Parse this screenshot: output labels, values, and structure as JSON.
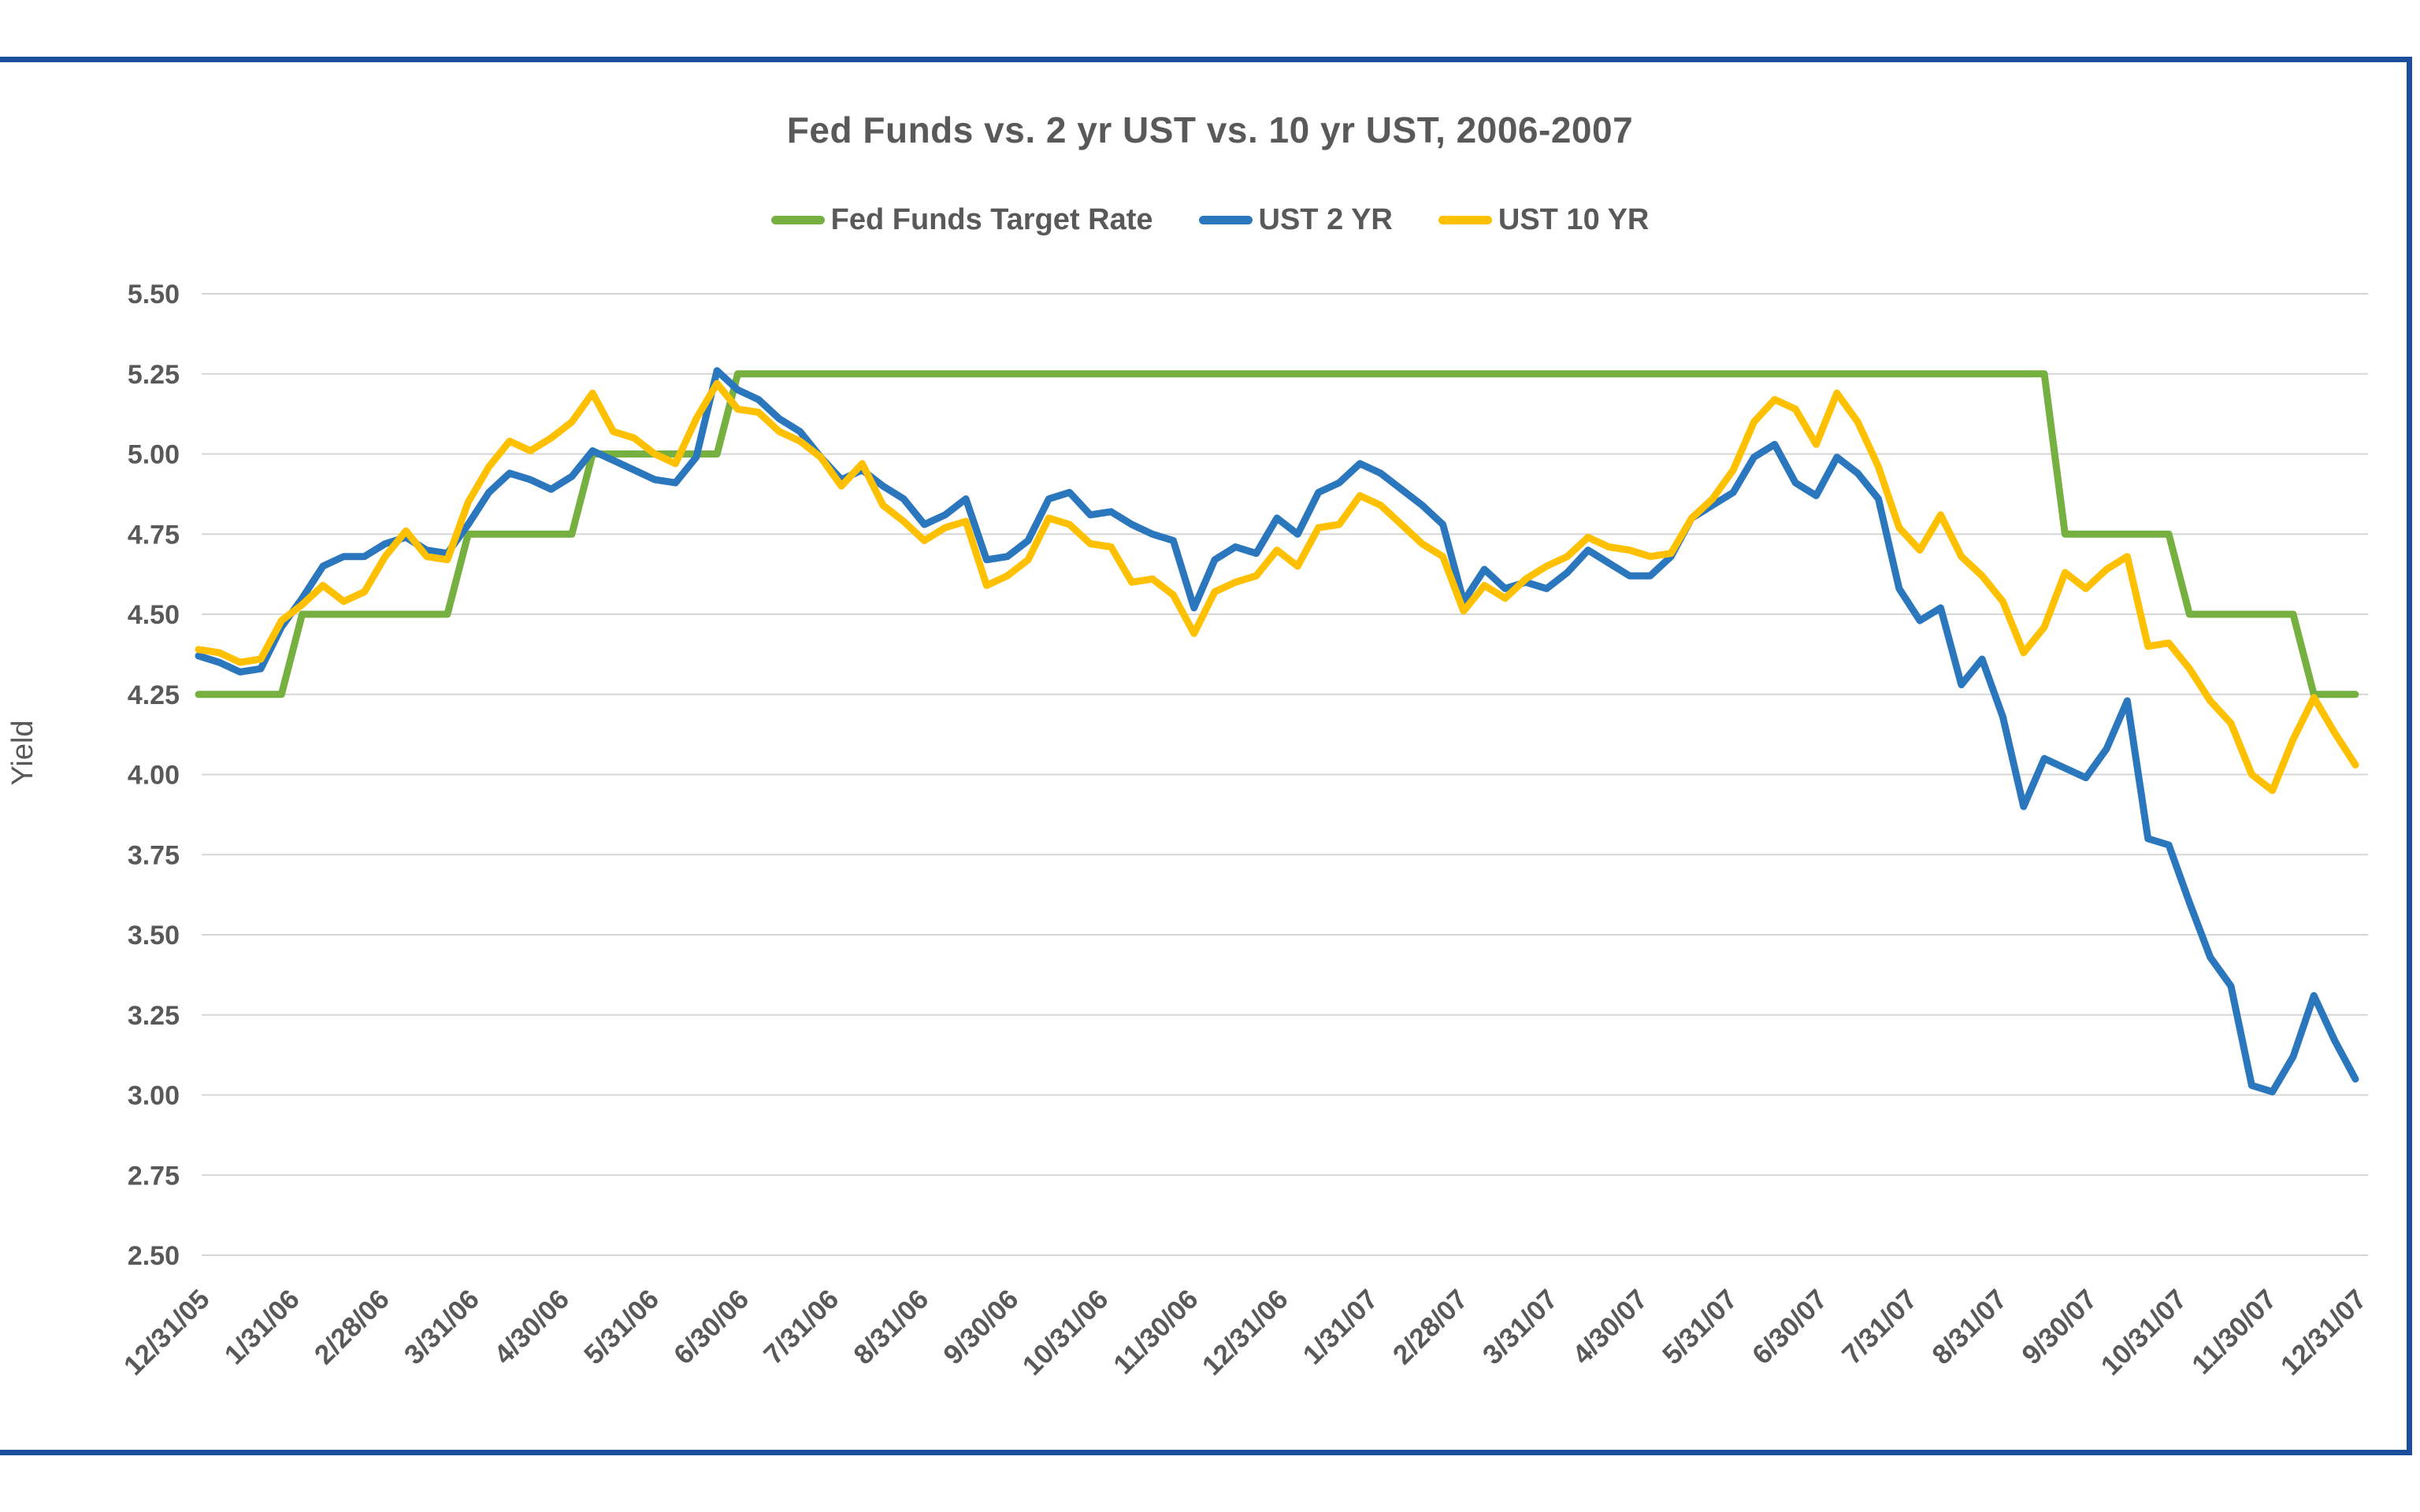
{
  "chart_data": {
    "type": "line",
    "title": "Fed Funds vs. 2 yr UST vs. 10 yr UST, 2006-2007",
    "xlabel": "",
    "ylabel": "Yield",
    "ylim": [
      2.5,
      5.5
    ],
    "ytick_step": 0.25,
    "y_tick_labels": [
      "5.50",
      "5.25",
      "5.00",
      "4.75",
      "4.50",
      "4.25",
      "4.00",
      "3.75",
      "3.50",
      "3.25",
      "3.00",
      "2.75",
      "2.50"
    ],
    "x_tick_labels": [
      "12/31/05",
      "1/31/06",
      "2/28/06",
      "3/31/06",
      "4/30/06",
      "5/31/06",
      "6/30/06",
      "7/31/06",
      "8/31/06",
      "9/30/06",
      "10/31/06",
      "11/30/06",
      "12/31/06",
      "1/31/07",
      "2/28/07",
      "3/31/07",
      "4/30/07",
      "5/31/07",
      "6/30/07",
      "7/31/07",
      "8/31/07",
      "9/30/07",
      "10/31/07",
      "11/30/07",
      "12/31/07"
    ],
    "x_sampling": "weekly",
    "x_start": "12/31/05",
    "x_end": "12/31/07",
    "n_points": 105,
    "grid": "horizontal-only",
    "legend_position": "top-center",
    "series": [
      {
        "name": "Fed Funds Target Rate",
        "color": "#76B041",
        "values": [
          4.25,
          4.25,
          4.25,
          4.25,
          4.25,
          4.5,
          4.5,
          4.5,
          4.5,
          4.5,
          4.5,
          4.5,
          4.5,
          4.75,
          4.75,
          4.75,
          4.75,
          4.75,
          4.75,
          5.0,
          5.0,
          5.0,
          5.0,
          5.0,
          5.0,
          5.0,
          5.25,
          5.25,
          5.25,
          5.25,
          5.25,
          5.25,
          5.25,
          5.25,
          5.25,
          5.25,
          5.25,
          5.25,
          5.25,
          5.25,
          5.25,
          5.25,
          5.25,
          5.25,
          5.25,
          5.25,
          5.25,
          5.25,
          5.25,
          5.25,
          5.25,
          5.25,
          5.25,
          5.25,
          5.25,
          5.25,
          5.25,
          5.25,
          5.25,
          5.25,
          5.25,
          5.25,
          5.25,
          5.25,
          5.25,
          5.25,
          5.25,
          5.25,
          5.25,
          5.25,
          5.25,
          5.25,
          5.25,
          5.25,
          5.25,
          5.25,
          5.25,
          5.25,
          5.25,
          5.25,
          5.25,
          5.25,
          5.25,
          5.25,
          5.25,
          5.25,
          5.25,
          5.25,
          5.25,
          5.25,
          4.75,
          4.75,
          4.75,
          4.75,
          4.75,
          4.75,
          4.5,
          4.5,
          4.5,
          4.5,
          4.5,
          4.5,
          4.25,
          4.25,
          4.25
        ]
      },
      {
        "name": "UST 2 YR",
        "color": "#2B77BD",
        "values": [
          4.37,
          4.35,
          4.32,
          4.33,
          4.46,
          4.55,
          4.65,
          4.68,
          4.68,
          4.72,
          4.74,
          4.7,
          4.69,
          4.78,
          4.88,
          4.94,
          4.92,
          4.89,
          4.93,
          5.01,
          4.98,
          4.95,
          4.92,
          4.91,
          4.99,
          5.26,
          5.2,
          5.17,
          5.11,
          5.07,
          4.99,
          4.92,
          4.95,
          4.9,
          4.86,
          4.78,
          4.81,
          4.86,
          4.67,
          4.68,
          4.73,
          4.86,
          4.88,
          4.81,
          4.82,
          4.78,
          4.75,
          4.73,
          4.52,
          4.67,
          4.71,
          4.69,
          4.8,
          4.75,
          4.88,
          4.91,
          4.97,
          4.94,
          4.89,
          4.84,
          4.78,
          4.54,
          4.64,
          4.58,
          4.6,
          4.58,
          4.63,
          4.7,
          4.66,
          4.62,
          4.62,
          4.68,
          4.8,
          4.84,
          4.88,
          4.99,
          5.03,
          4.91,
          4.87,
          4.99,
          4.94,
          4.86,
          4.58,
          4.48,
          4.52,
          4.28,
          4.36,
          4.18,
          3.9,
          4.05,
          4.02,
          3.99,
          4.08,
          4.23,
          3.8,
          3.78,
          3.6,
          3.43,
          3.34,
          3.03,
          3.01,
          3.12,
          3.31,
          3.17,
          3.05
        ]
      },
      {
        "name": "UST 10 YR",
        "color": "#FFC000",
        "values": [
          4.39,
          4.38,
          4.35,
          4.36,
          4.48,
          4.53,
          4.59,
          4.54,
          4.57,
          4.68,
          4.76,
          4.68,
          4.67,
          4.85,
          4.96,
          5.04,
          5.01,
          5.05,
          5.1,
          5.19,
          5.07,
          5.05,
          5.0,
          4.97,
          5.11,
          5.22,
          5.14,
          5.13,
          5.07,
          5.04,
          4.99,
          4.9,
          4.97,
          4.84,
          4.79,
          4.73,
          4.77,
          4.79,
          4.59,
          4.62,
          4.67,
          4.8,
          4.78,
          4.72,
          4.71,
          4.6,
          4.61,
          4.56,
          4.44,
          4.57,
          4.6,
          4.62,
          4.7,
          4.65,
          4.77,
          4.78,
          4.87,
          4.84,
          4.78,
          4.72,
          4.68,
          4.51,
          4.59,
          4.55,
          4.61,
          4.65,
          4.68,
          4.74,
          4.71,
          4.7,
          4.68,
          4.69,
          4.8,
          4.86,
          4.95,
          5.1,
          5.17,
          5.14,
          5.03,
          5.19,
          5.1,
          4.96,
          4.77,
          4.7,
          4.81,
          4.68,
          4.62,
          4.54,
          4.38,
          4.46,
          4.63,
          4.58,
          4.64,
          4.68,
          4.4,
          4.41,
          4.33,
          4.23,
          4.16,
          4.0,
          3.95,
          4.11,
          4.24,
          4.13,
          4.03
        ]
      }
    ]
  },
  "styles": {
    "frame_border_color": "#1B4F9C",
    "grid_color": "#D6D6D6",
    "text_color": "#595959",
    "background_color": "#FFFFFF"
  }
}
